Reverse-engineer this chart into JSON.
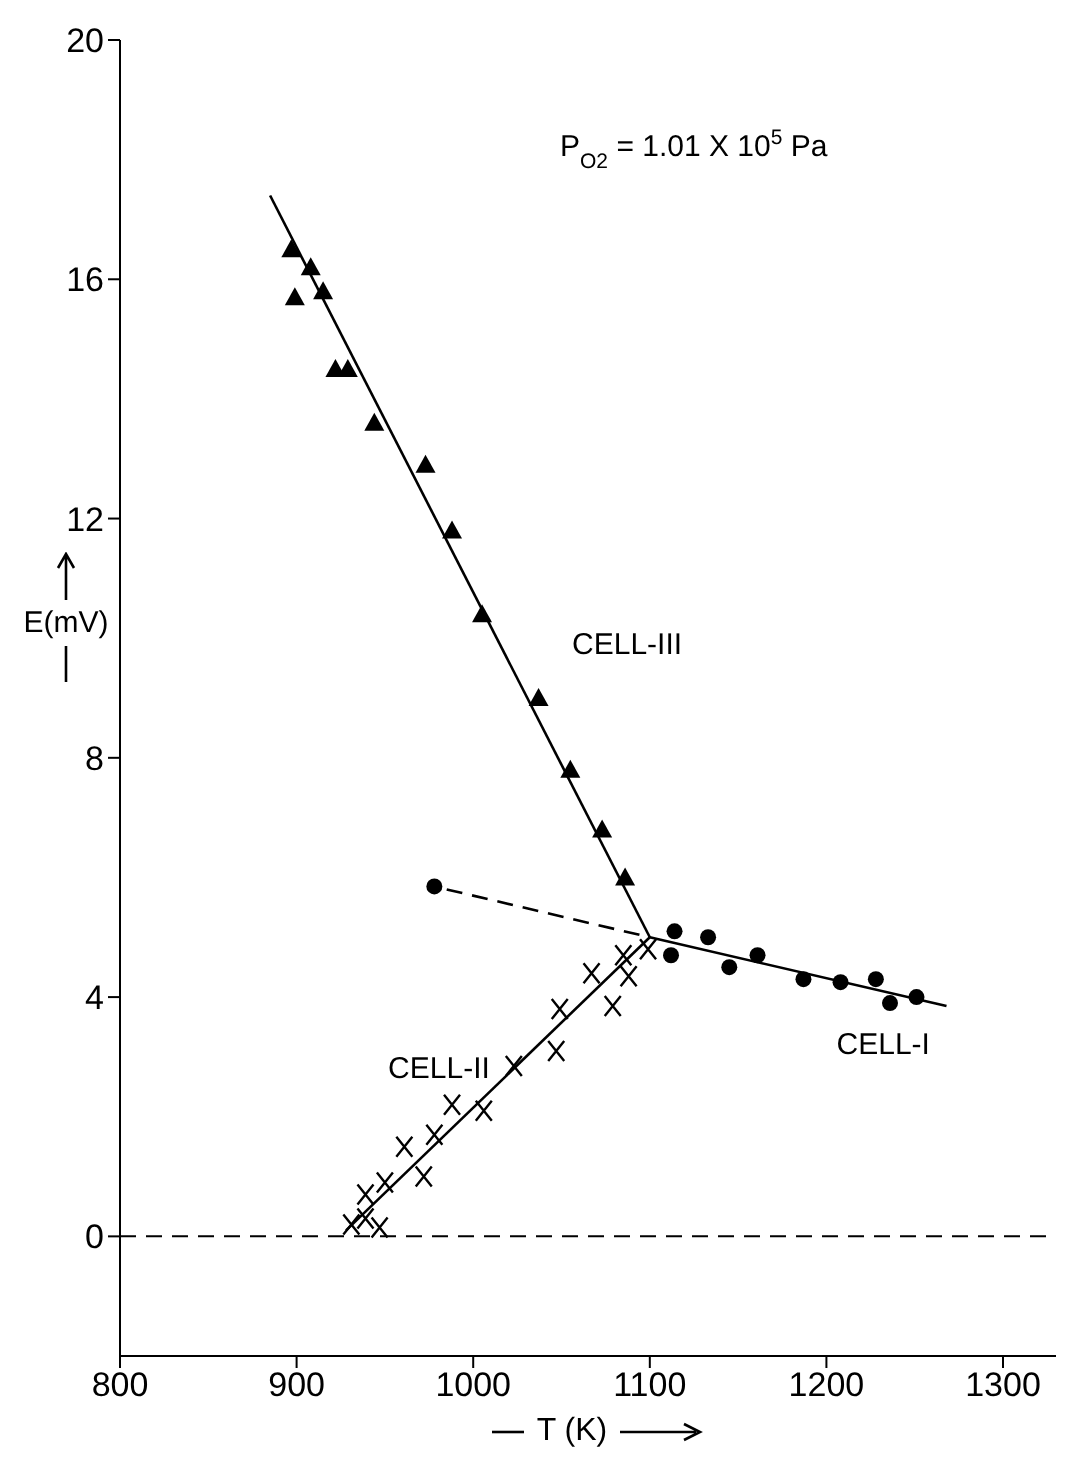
{
  "chart_data": {
    "type": "scatter",
    "xlabel": "T (K)",
    "ylabel": "E(mV)",
    "xlim": [
      800,
      1330
    ],
    "xticks": [
      800,
      900,
      1000,
      1100,
      1200,
      1300
    ],
    "ylim": [
      -2,
      20
    ],
    "yticks": [
      0,
      4,
      8,
      12,
      16,
      20
    ],
    "grid": false,
    "legend": false,
    "annotations": [
      "P$_{O2}$ = 1.01 X 10$^{5}$ Pa"
    ],
    "ref_lines": [
      {
        "axis": "y",
        "value": 0,
        "line_style": "dashed",
        "color": "#000000"
      }
    ],
    "series": [
      {
        "name": "CELL-I",
        "marker": "circle",
        "color": "#000000",
        "x": [
          1114,
          1112,
          1133,
          1145,
          1161,
          1187,
          1208,
          1228,
          1236,
          1251
        ],
        "values": [
          5.1,
          4.7,
          5.0,
          4.5,
          4.7,
          4.3,
          4.25,
          4.3,
          3.9,
          4.0
        ]
      },
      {
        "name": "CELL-II",
        "marker": "cross",
        "color": "#000000",
        "x": [
          931,
          939,
          947,
          939,
          950,
          972,
          961,
          978,
          988,
          1006,
          1023,
          1047,
          1049,
          1067,
          1079,
          1085,
          1088,
          1099
        ],
        "values": [
          0.2,
          0.3,
          0.15,
          0.7,
          0.9,
          1.0,
          1.5,
          1.7,
          2.2,
          2.1,
          2.85,
          3.1,
          3.8,
          4.4,
          3.85,
          4.7,
          4.35,
          4.8
        ]
      },
      {
        "name": "CELL-III",
        "marker": "triangle",
        "color": "#000000",
        "x": [
          897,
          899,
          908,
          915,
          922,
          929,
          944,
          973,
          988,
          1005,
          1037,
          1055,
          1073,
          1086
        ],
        "values": [
          16.5,
          15.7,
          16.2,
          15.8,
          14.5,
          14.5,
          13.6,
          12.9,
          11.8,
          10.4,
          9.0,
          7.8,
          6.8,
          6.0
        ]
      },
      {
        "marker": "circle",
        "color": "#000000",
        "x": [
          978
        ],
        "values": [
          5.85
        ]
      },
      {
        "type": "line",
        "marker": "none",
        "line_style": "solid",
        "color": "#000000",
        "x": [
          885,
          1100
        ],
        "values": [
          17.4,
          5.0
        ]
      },
      {
        "type": "line",
        "marker": "none",
        "line_style": "solid",
        "color": "#000000",
        "x": [
          928,
          1100
        ],
        "values": [
          0.1,
          5.0
        ]
      },
      {
        "type": "line",
        "marker": "none",
        "line_style": "solid",
        "color": "#000000",
        "x": [
          1100,
          1268
        ],
        "values": [
          5.0,
          3.85
        ]
      },
      {
        "type": "line",
        "marker": "none",
        "line_style": "dashed",
        "color": "#000000",
        "x": [
          985,
          1100
        ],
        "values": [
          5.8,
          5.0
        ]
      }
    ]
  }
}
